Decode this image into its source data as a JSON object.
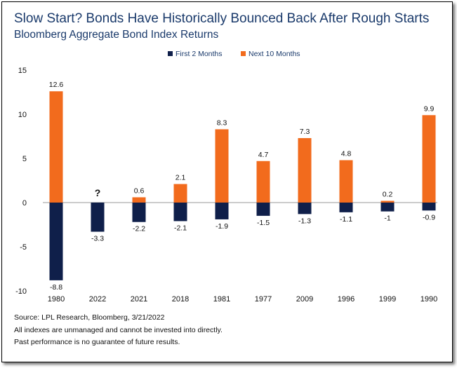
{
  "title": "Slow Start? Bonds Have Historically Bounced Back After Rough Starts",
  "subtitle": "Bloomberg Aggregate Bond Index Returns",
  "colors": {
    "first": "#0f1f4a",
    "next": "#f26b1d",
    "text": "#1a3a6b"
  },
  "chart_data": {
    "type": "bar",
    "stacked": true,
    "categories": [
      "1980",
      "2022",
      "2021",
      "2018",
      "1981",
      "1977",
      "2009",
      "1996",
      "1999",
      "1990"
    ],
    "series": [
      {
        "name": "First 2 Months",
        "values": [
          -8.8,
          -3.3,
          -2.2,
          -2.1,
          -1.9,
          -1.5,
          -1.3,
          -1.1,
          -1,
          -0.9
        ]
      },
      {
        "name": "Next 10 Months",
        "values": [
          12.6,
          null,
          0.6,
          2.1,
          8.3,
          4.7,
          7.3,
          4.8,
          0.2,
          9.9
        ]
      }
    ],
    "next_labels": [
      "12.6",
      "?",
      "0.6",
      "2.1",
      "8.3",
      "4.7",
      "7.3",
      "4.8",
      "0.2",
      "9.9"
    ],
    "first_labels": [
      "-8.8",
      "-3.3",
      "-2.2",
      "-2.1",
      "-1.9",
      "-1.5",
      "-1.3",
      "-1.1",
      "-1",
      "-0.9"
    ],
    "yticks": [
      "15",
      "10",
      "5",
      "0",
      "-5",
      "-10"
    ],
    "ylim": [
      -10,
      15
    ],
    "legend_position": "top-center",
    "grid": false
  },
  "footer": {
    "source": "Source: LPL Research, Bloomberg, 3/21/2022",
    "note1": "All indexes are unmanaged and cannot be invested into directly.",
    "note2": "Past performance is no guarantee of future results."
  }
}
